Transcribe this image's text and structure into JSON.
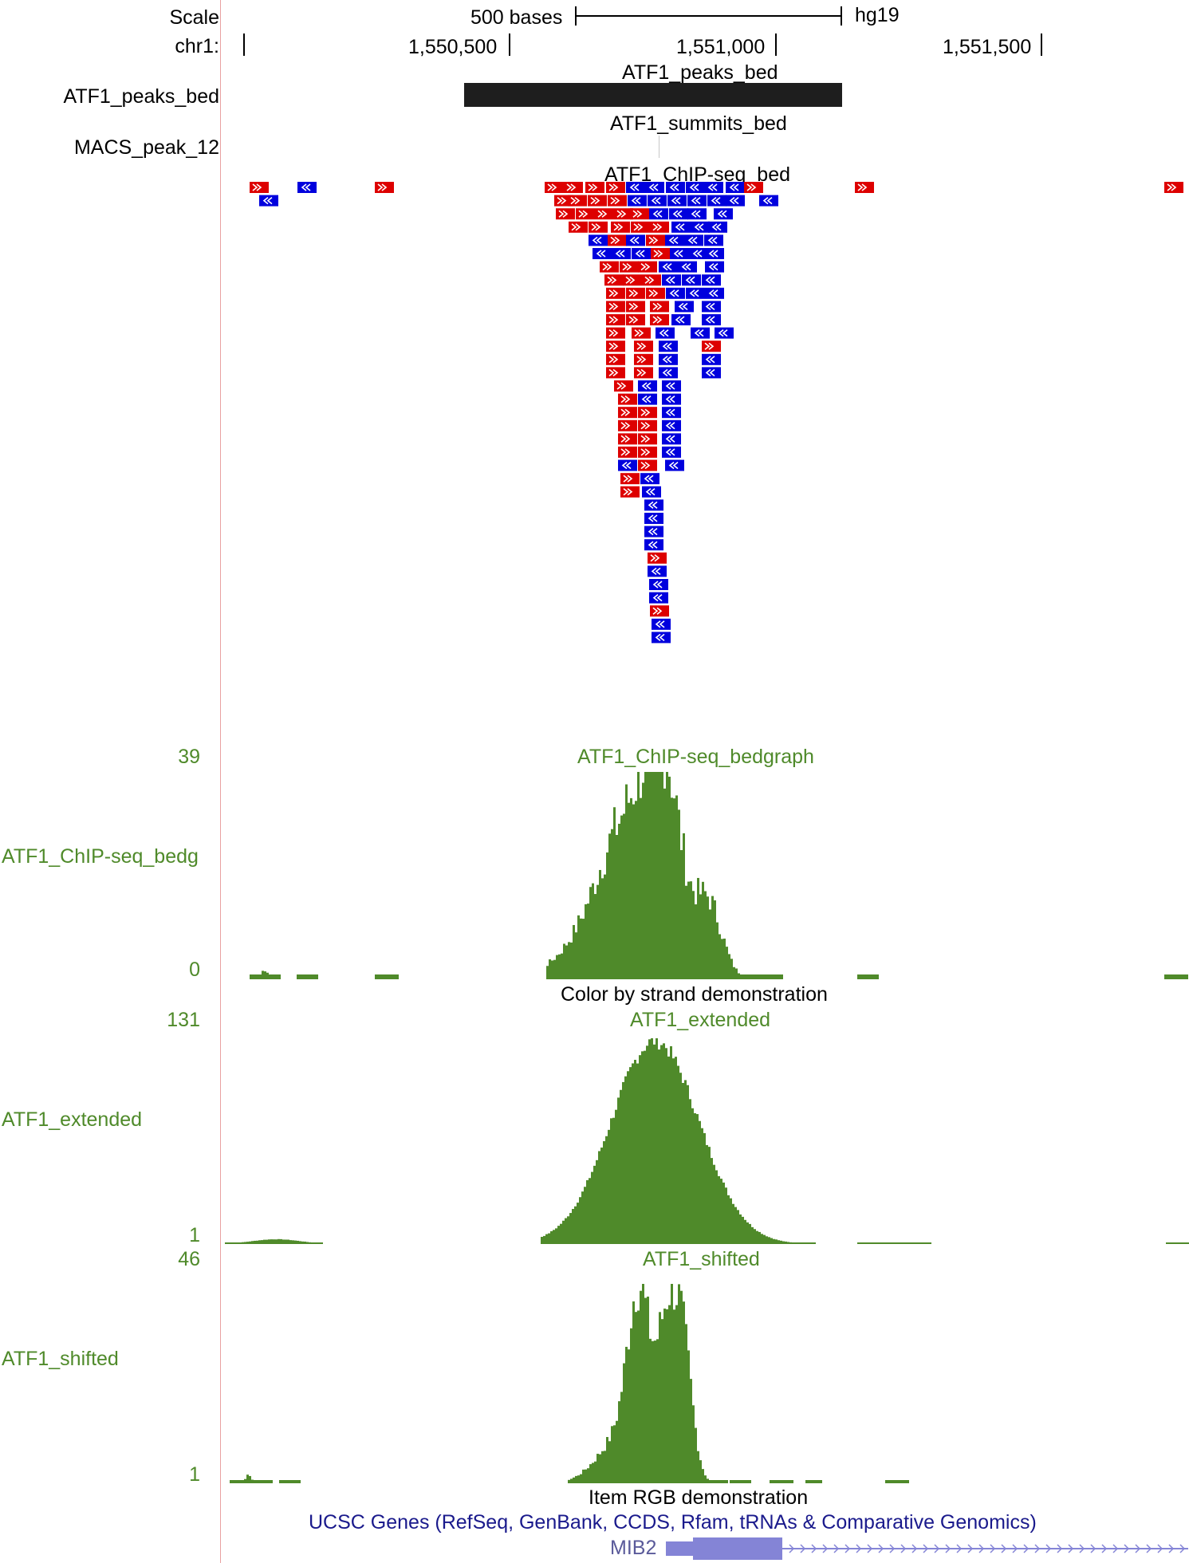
{
  "ruler": {
    "scale_label": "Scale",
    "chrom_label": "chr1:",
    "scale_bar_label": "500 bases",
    "assembly": "hg19",
    "ticks": [
      "1,550,500",
      "1,551,000",
      "1,551,500"
    ]
  },
  "tracks": {
    "peaks": {
      "left_label": "ATF1_peaks_bed",
      "center_label": "ATF1_peaks_bed"
    },
    "summits": {
      "left_label": "MACS_peak_12",
      "center_label": "ATF1_summits_bed"
    },
    "reads": {
      "center_label": "ATF1_ChIP-seq_bed"
    },
    "bedgraph": {
      "left_label": "ATF1_ChIP-seq_bedg",
      "center_label": "ATF1_ChIP-seq_bedgraph",
      "ymax": "39",
      "ymin": "0"
    },
    "extended": {
      "group_label": "Color by strand demonstration",
      "left_label": "ATF1_extended",
      "center_label": "ATF1_extended",
      "ymax": "131",
      "ymin": "1"
    },
    "shifted": {
      "left_label": "ATF1_shifted",
      "center_label": "ATF1_shifted",
      "ymax": "46",
      "ymin": "1"
    },
    "genes": {
      "group_label": "Item RGB demonstration",
      "center_label": "UCSC Genes (RefSeq, GenBank, CCDS, Rfam, tRNAs & Comparative Genomics)",
      "gene_name": "MIB2"
    }
  },
  "colors": {
    "forward": "#dd0000",
    "reverse": "#0000dd",
    "signal": "#4f8a2a",
    "gene": "#8484d6",
    "peak": "#1e1e1e"
  },
  "icons": {
    "forward_strand": "chevron-right-icon",
    "reverse_strand": "chevron-left-icon",
    "gene_strand": "chevron-right-icon"
  }
}
